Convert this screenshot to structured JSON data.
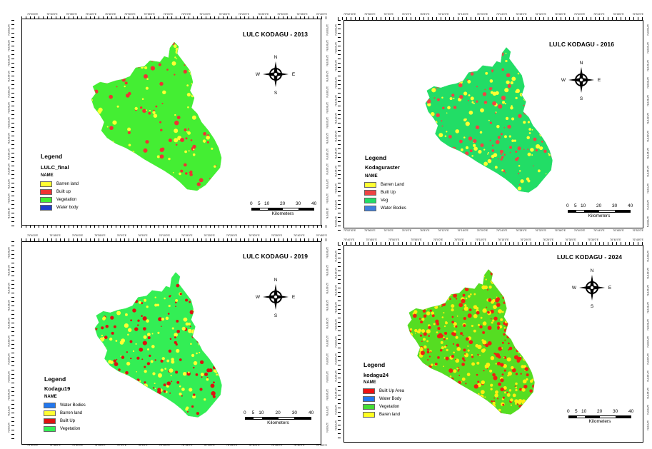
{
  "panels": [
    {
      "title": "LULC KODAGU - 2013",
      "legend_heading": "Legend",
      "layer_name": "LULC_final",
      "field_name": "NAME",
      "classes": [
        {
          "label": "Barren land",
          "color": "#ffff33"
        },
        {
          "label": "Built up",
          "color": "#ee3333"
        },
        {
          "label": "Vegetation",
          "color": "#44ee33"
        },
        {
          "label": "Water body",
          "color": "#1f3fcc"
        }
      ],
      "scale_labels": [
        "0",
        "5",
        "10",
        "20",
        "30",
        "40"
      ],
      "scale_unit": "Kilometers",
      "compass": {
        "n": "N",
        "s": "S",
        "e": "E",
        "w": "W"
      },
      "dominant_colors": {
        "base": "#44ee33",
        "second": "#ffff33",
        "third": "#ee3333"
      },
      "lon_ticks": [
        "75°25'0\"E",
        "75°30'0\"E",
        "75°35'0\"E",
        "75°40'0\"E",
        "75°45'0\"E",
        "75°50'0\"E",
        "75°55'0\"E",
        "76°0'0\"E",
        "76°5'0\"E",
        "76°10'0\"E",
        "76°15'0\"E",
        "76°20'0\"E",
        "76°25'0\"E",
        "76°30'0\"E",
        "76°35'0\"E",
        "76°40'0\"E"
      ],
      "lat_ticks": [
        "12°55'0\"N",
        "12°50'0\"N",
        "12°45'0\"N",
        "12°40'0\"N",
        "12°35'0\"N",
        "12°30'0\"N",
        "12°25'0\"N",
        "12°20'0\"N",
        "12°15'0\"N",
        "12°10'0\"N",
        "12°5'0\"N",
        "12°0'0\"N",
        "11°55'0\"N"
      ]
    },
    {
      "title": "LULC KODAGU - 2016",
      "legend_heading": "Legend",
      "layer_name": "Kodaguraster",
      "field_name": "NAME",
      "classes": [
        {
          "label": "Barren Land",
          "color": "#ffff33"
        },
        {
          "label": "Built Up",
          "color": "#ee4444"
        },
        {
          "label": "Veg",
          "color": "#22dd66"
        },
        {
          "label": "Water Bodies",
          "color": "#3f7fdd"
        }
      ],
      "scale_labels": [
        "0",
        "5",
        "10",
        "20",
        "30",
        "40"
      ],
      "scale_unit": "Kilometers",
      "compass": {
        "n": "N",
        "s": "S",
        "e": "E",
        "w": "W"
      },
      "dominant_colors": {
        "base": "#22dd66",
        "second": "#ee4444",
        "third": "#ffff33"
      },
      "lon_ticks": [
        "75°52'30\"E",
        "75°56'0\"E",
        "76°0'0\"E",
        "76°4'0\"E",
        "76°8'0\"E",
        "76°12'0\"E",
        "76°16'0\"E",
        "76°20'0\"E",
        "76°24'0\"E",
        "76°28'0\"E",
        "76°32'0\"E",
        "76°36'0\"E",
        "76°40'0\"E",
        "76°44'0\"E",
        "76°48'0\"E",
        "76°52'0\"E"
      ],
      "lat_ticks": [
        "12°50'0\"N",
        "12°45'0\"N",
        "12°40'0\"N",
        "12°35'0\"N",
        "12°30'0\"N",
        "12°25'0\"N",
        "12°20'0\"N",
        "12°15'0\"N",
        "12°10'0\"N",
        "12°5'0\"N",
        "12°0'0\"N",
        "11°55'0\"N"
      ]
    },
    {
      "title": "LULC KODAGU - 2019",
      "legend_heading": "Legend",
      "layer_name": "Kodagu19",
      "field_name": "NAME",
      "classes": [
        {
          "label": "Water Bodies",
          "color": "#2277ee"
        },
        {
          "label": "Barren land",
          "color": "#ffff33"
        },
        {
          "label": "Built Up",
          "color": "#dd1111"
        },
        {
          "label": "Vegetation",
          "color": "#33ee55"
        }
      ],
      "scale_labels": [
        "0",
        "5",
        "10",
        "20",
        "30",
        "40"
      ],
      "scale_unit": "Kilometers",
      "compass": {
        "n": "N",
        "s": "S",
        "e": "E",
        "w": "W"
      },
      "dominant_colors": {
        "base": "#33ee55",
        "second": "#dd1111",
        "third": "#ffff33"
      },
      "lon_ticks": [
        "75°40'0\"E",
        "75°45'0\"E",
        "75°50'0\"E",
        "75°55'0\"E",
        "76°0'0\"E",
        "76°5'0\"E",
        "76°10'0\"E",
        "76°15'0\"E",
        "76°20'0\"E",
        "76°25'0\"E",
        "76°30'0\"E",
        "76°35'0\"E",
        "76°40'0\"E",
        "76°45'0\"E"
      ],
      "lat_ticks": [
        "12°50'0\"N",
        "12°45'0\"N",
        "12°40'0\"N",
        "12°35'0\"N",
        "12°30'0\"N",
        "12°25'0\"N",
        "12°20'0\"N",
        "12°15'0\"N",
        "12°10'0\"N",
        "12°5'0\"N",
        "12°0'0\"N"
      ]
    },
    {
      "title": "LULC KODAGU - 2024",
      "legend_heading": "Legend",
      "layer_name": "kodagu24",
      "field_name": "NAME",
      "classes": [
        {
          "label": "Built Up Area",
          "color": "#ee1111"
        },
        {
          "label": "Water Body",
          "color": "#2277ee"
        },
        {
          "label": "Vegetation",
          "color": "#44dd33"
        },
        {
          "label": "Baren land",
          "color": "#ffff22"
        }
      ],
      "scale_labels": [
        "0",
        "5",
        "10",
        "20",
        "30",
        "40"
      ],
      "scale_unit": "Kilometers",
      "compass": {
        "n": "N",
        "s": "S",
        "e": "E",
        "w": "W"
      },
      "dominant_colors": {
        "base": "#55dd22",
        "second": "#ffee11",
        "third": "#ee2211"
      },
      "lon_ticks": [
        "75°40'0\"E",
        "75°45'0\"E",
        "75°50'0\"E",
        "75°55'0\"E",
        "76°0'0\"E",
        "76°5'0\"E",
        "76°10'0\"E",
        "76°15'0\"E",
        "76°20'0\"E",
        "76°25'0\"E",
        "76°30'0\"E",
        "76°35'0\"E",
        "76°40'0\"E",
        "76°45'0\"E"
      ],
      "lat_ticks": [
        "12°50'0\"N",
        "12°45'0\"N",
        "12°40'0\"N",
        "12°35'0\"N",
        "12°30'0\"N",
        "12°25'0\"N",
        "12°20'0\"N",
        "12°15'0\"N",
        "12°10'0\"N",
        "12°5'0\"N",
        "12°0'0\"N"
      ]
    }
  ]
}
